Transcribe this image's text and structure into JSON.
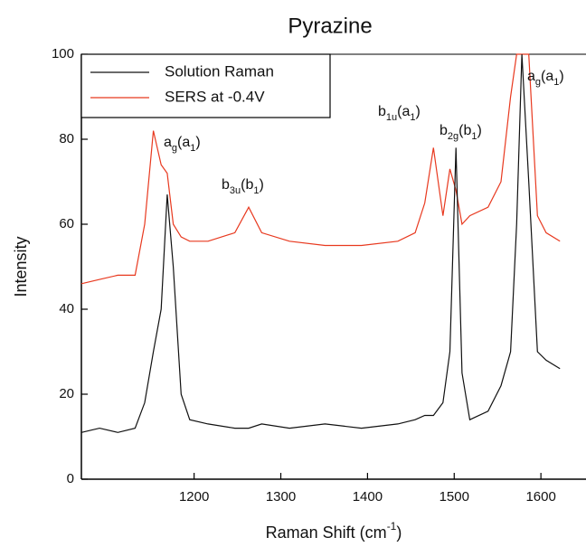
{
  "chart_data": {
    "type": "line",
    "title": "Pyrazine",
    "x_label": [
      "Raman Shift (cm",
      "-1",
      ")"
    ],
    "y_label": "Intensity",
    "x": [
      1070,
      1091,
      1112,
      1132,
      1143,
      1153,
      1162,
      1169,
      1176,
      1185,
      1195,
      1216,
      1247,
      1263,
      1278,
      1310,
      1351,
      1393,
      1435,
      1455,
      1466,
      1476,
      1487,
      1495,
      1502,
      1509,
      1518,
      1539,
      1554,
      1565,
      1572,
      1578,
      1586,
      1596,
      1606,
      1622
    ],
    "series": [
      {
        "name": "Solution Raman",
        "color": "#111111",
        "values": [
          11,
          12,
          11,
          12,
          18,
          30,
          40,
          67,
          50,
          20,
          14,
          13,
          12,
          12,
          13,
          12,
          13,
          12,
          13,
          14,
          15,
          15,
          18,
          30,
          78,
          25,
          14,
          16,
          22,
          30,
          60,
          100,
          70,
          30,
          28,
          26
        ]
      },
      {
        "name": "SERS at -0.4V",
        "color": "#e8391f",
        "values": [
          46,
          47,
          48,
          48,
          60,
          82,
          74,
          72,
          60,
          57,
          56,
          56,
          58,
          64,
          58,
          56,
          55,
          55,
          56,
          58,
          65,
          78,
          62,
          73,
          68,
          60,
          62,
          64,
          70,
          90,
          100,
          100,
          100,
          62,
          58,
          56
        ]
      }
    ],
    "annotations": [
      [
        "a",
        "g",
        "(a",
        "1",
        ")"
      ],
      [
        "b",
        "3u",
        "(b",
        "1",
        ")"
      ],
      [
        "b",
        "1u",
        "(a",
        "1",
        ")"
      ],
      [
        "b",
        "2g",
        "(b",
        "1",
        ")"
      ],
      [
        "a",
        "g",
        "(a",
        "1",
        ")"
      ]
    ],
    "xlim": [
      1070,
      1652
    ],
    "ylim": [
      0,
      100
    ],
    "xticks": [
      1200,
      1300,
      1400,
      1500,
      1600
    ],
    "yticks": [
      0,
      20,
      40,
      60,
      80,
      100
    ]
  }
}
